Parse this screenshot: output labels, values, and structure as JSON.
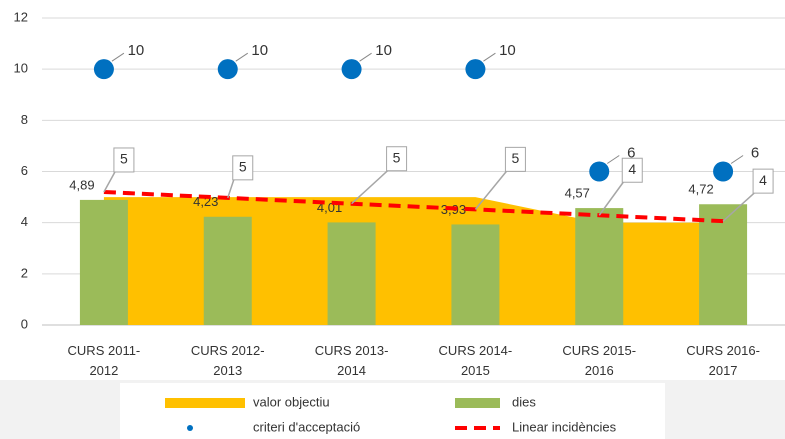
{
  "chart_data": {
    "type": "combo",
    "categories": [
      "CURS 2011-2012",
      "CURS 2012-2013",
      "CURS 2013-2014",
      "CURS 2014-2015",
      "CURS 2015-2016",
      "CURS 2016-2017"
    ],
    "ylim": [
      0,
      12
    ],
    "yticks": [
      0,
      2,
      4,
      6,
      8,
      10,
      12
    ],
    "grid": true,
    "legend": "bottom",
    "series": [
      {
        "name": "valor objectiu",
        "type": "area",
        "color": "#ffc000",
        "values": [
          5,
          5,
          5,
          5,
          4,
          4
        ]
      },
      {
        "name": "dies",
        "type": "bar",
        "color": "#9bbb59",
        "label_color": "#00b050",
        "values": [
          4.89,
          4.23,
          4.01,
          3.93,
          4.57,
          4.72
        ],
        "value_labels": [
          "4,89",
          "4,23",
          "4,01",
          "3,93",
          "4,57",
          "4,72"
        ]
      },
      {
        "name": "criteri d'acceptació",
        "type": "scatter",
        "color": "#0070c0",
        "values": [
          10,
          10,
          10,
          10,
          6,
          6
        ]
      },
      {
        "name": "Linear incidències",
        "type": "trendline",
        "color": "#ff0000",
        "values": [
          5.2,
          4.97,
          4.74,
          4.52,
          4.29,
          4.06
        ]
      }
    ],
    "callouts": {
      "color": "#ed7d31",
      "values": [
        5,
        5,
        5,
        5,
        4,
        4
      ]
    }
  }
}
